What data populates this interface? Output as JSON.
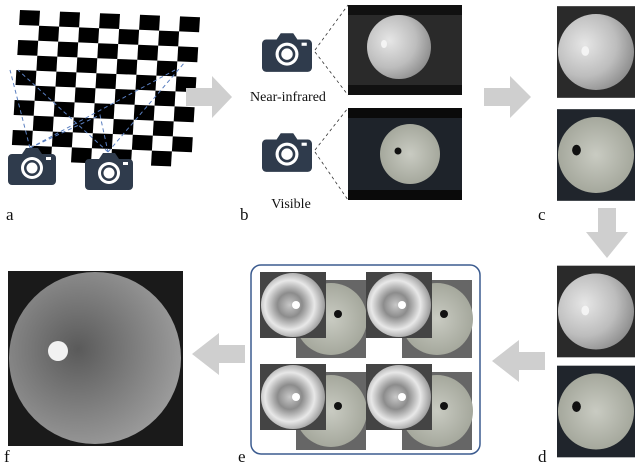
{
  "labels": {
    "a": "a",
    "b": "b",
    "c": "c",
    "d": "d",
    "e": "e",
    "f": "f"
  },
  "captions": {
    "near_infrared": "Near-infrared",
    "visible": "Visible"
  }
}
